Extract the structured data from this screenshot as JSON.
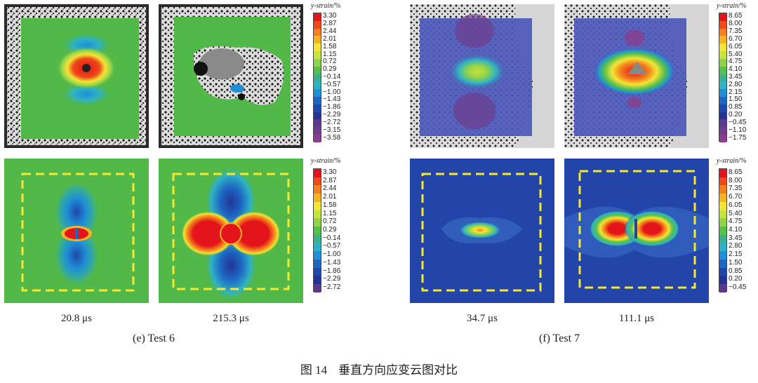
{
  "figure": {
    "number": "图 14",
    "caption": "垂直方向应变云图对比"
  },
  "groups": [
    {
      "label": "(e) Test 6",
      "times": [
        "20.8 μs",
        "215.3 μs"
      ],
      "colorbar_top": {
        "title": "y-strain",
        "unit": "/%",
        "ticks": [
          "3.30",
          "2.87",
          "2.44",
          "2.01",
          "1.58",
          "1.15",
          "0.72",
          "0.29",
          "−0.14",
          "−0.57",
          "−1.00",
          "−1.43",
          "−1.86",
          "−2.29",
          "−2.72",
          "−3.15",
          "−3.58"
        ]
      },
      "colorbar_bottom": {
        "title": "y-strain",
        "unit": "/%",
        "ticks": [
          "3.30",
          "2.87",
          "2.44",
          "2.01",
          "1.58",
          "1.15",
          "0.72",
          "0.29",
          "−0.14",
          "−0.57",
          "−1.00",
          "−1.43",
          "−1.86",
          "−2.29",
          "−2.72"
        ]
      }
    },
    {
      "label": "(f) Test 7",
      "times": [
        "34.7 μs",
        "111.1 μs"
      ],
      "colorbar_top": {
        "title": "y-strain",
        "unit": "/%",
        "ticks": [
          "8.65",
          "8.00",
          "7.35",
          "6.70",
          "6.05",
          "5.40",
          "4.75",
          "4.10",
          "3.45",
          "2.80",
          "2.15",
          "1.50",
          "0.85",
          "0.20",
          "−0.45",
          "−1.10",
          "−1.75"
        ]
      },
      "colorbar_bottom": {
        "title": "y-strain",
        "unit": "/%",
        "ticks": [
          "8.65",
          "8.00",
          "7.35",
          "6.70",
          "6.05",
          "5.40",
          "4.75",
          "4.10",
          "3.45",
          "2.80",
          "2.15",
          "1.50",
          "0.85",
          "0.20",
          "−0.45"
        ]
      }
    }
  ],
  "colors": {
    "scale": [
      "#e3141b",
      "#ee4a1b",
      "#f57f1c",
      "#f7b321",
      "#f3e534",
      "#c8e23e",
      "#8fd34a",
      "#55c04d",
      "#3bb08a",
      "#2fb3c4",
      "#1f90d6",
      "#1d66c4",
      "#1f48ad",
      "#223594",
      "#5a3a8c",
      "#6e3d8c",
      "#893f8e"
    ],
    "strain_bg_green": "#52b848",
    "sim_bg_blue": "#2344a8",
    "dashed_box": "#f4e830"
  }
}
